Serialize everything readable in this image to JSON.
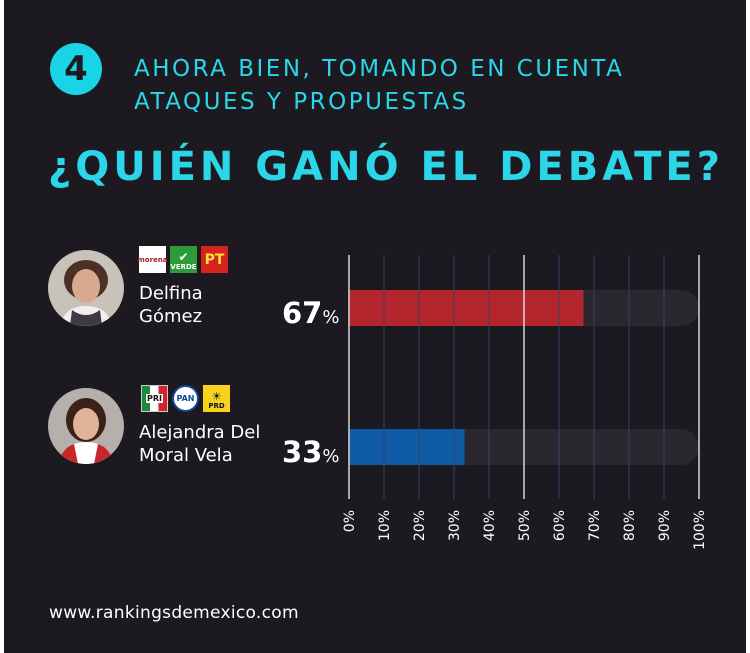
{
  "header": {
    "number": "4",
    "question_line1": "AHORA BIEN, TOMANDO EN CUENTA",
    "question_line2": "ATAQUES Y PROPUESTAS",
    "title": "¿QUIÉN GANÓ EL DEBATE?"
  },
  "candidates": [
    {
      "name_line1": "Delfina",
      "name_line2": "Gómez",
      "value": "67",
      "percent_sign": "%",
      "party_logos": [
        "morena",
        "VERDE",
        "PT"
      ]
    },
    {
      "name_line1": "Alejandra Del",
      "name_line2": "Moral Vela",
      "value": "33",
      "percent_sign": "%",
      "party_logos": [
        "PRI",
        "PAN",
        "PRD"
      ]
    }
  ],
  "chart_data": {
    "type": "bar",
    "orientation": "horizontal",
    "categories": [
      "Delfina Gómez",
      "Alejandra Del Moral Vela"
    ],
    "values": [
      67,
      33
    ],
    "colors": [
      "#b4262e",
      "#0f5ba6"
    ],
    "track_color": "#2a272f",
    "xlim": [
      0,
      100
    ],
    "xticks": [
      "0%",
      "10%",
      "20%",
      "30%",
      "40%",
      "50%",
      "60%",
      "70%",
      "80%",
      "90%",
      "100%"
    ],
    "grid": true
  },
  "footer": {
    "website": "www.rankingsdemexico.com"
  }
}
